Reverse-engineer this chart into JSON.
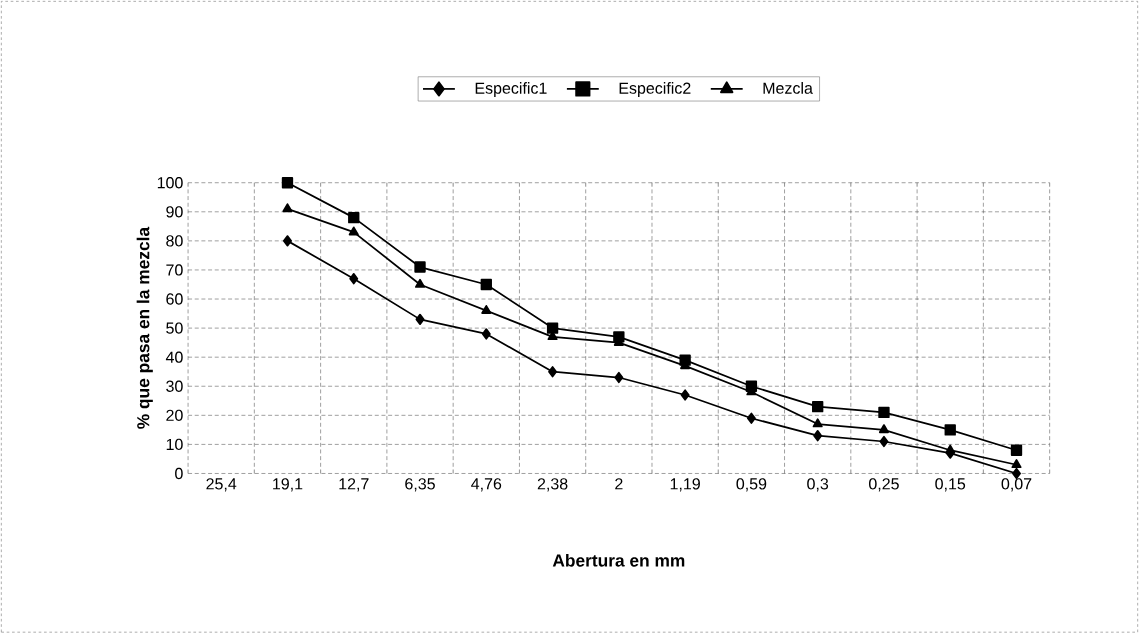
{
  "chart_data": {
    "type": "line",
    "xlabel": "Abertura en mm",
    "ylabel": "% que pasa en la mezcla",
    "categories": [
      "25,4",
      "19,1",
      "12,7",
      "6,35",
      "4,76",
      "2,38",
      "2",
      "1,19",
      "0,59",
      "0,3",
      "0,25",
      "0,15",
      "0,07"
    ],
    "series": [
      {
        "name": "Especific1",
        "color": "#000000",
        "marker": "diamond",
        "values": [
          null,
          80,
          67,
          53,
          48,
          35,
          33,
          27,
          19,
          13,
          11,
          7,
          0
        ]
      },
      {
        "name": "Especific2",
        "color": "#000000",
        "marker": "square",
        "values": [
          null,
          100,
          88,
          71,
          65,
          50,
          47,
          39,
          30,
          23,
          21,
          15,
          8
        ]
      },
      {
        "name": "Mezcla",
        "color": "#000000",
        "marker": "triangle",
        "values": [
          null,
          91,
          83,
          65,
          56,
          47,
          45,
          37,
          28,
          17,
          15,
          8,
          3
        ]
      }
    ],
    "ylim": [
      0,
      100
    ],
    "yticks": [
      0,
      10,
      20,
      30,
      40,
      50,
      60,
      70,
      80,
      90,
      100
    ],
    "grid": true,
    "legend": "top",
    "line_style": "solid"
  }
}
